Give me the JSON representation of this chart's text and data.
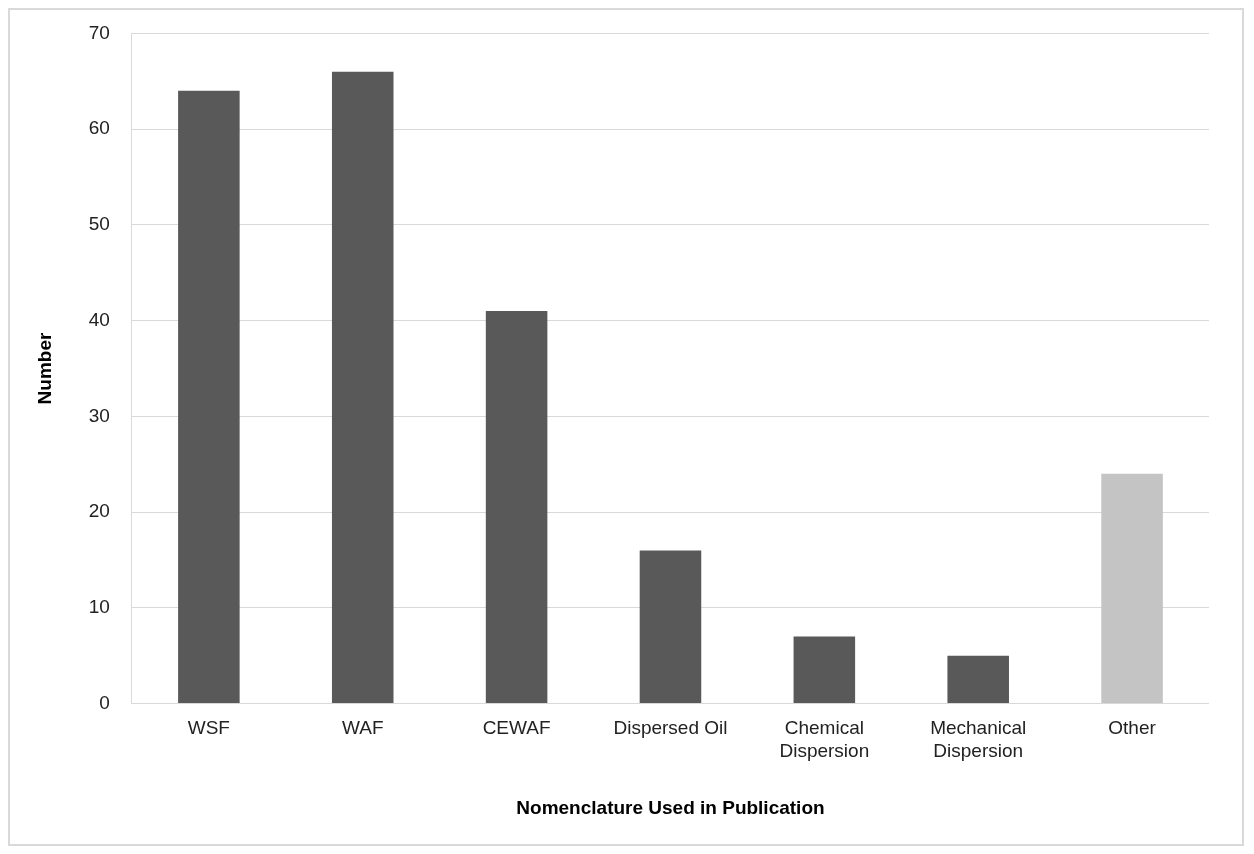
{
  "chart_data": {
    "type": "bar",
    "xlabel": "Nomenclature Used in Publication",
    "ylabel": "Number",
    "categories": [
      "WSF",
      "WAF",
      "CEWAF",
      "Dispersed Oil",
      "Chemical Dispersion",
      "Mechanical Dispersion",
      "Other"
    ],
    "values": [
      64,
      66,
      41,
      16,
      7,
      5,
      24
    ],
    "colors": [
      "#595959",
      "#595959",
      "#595959",
      "#595959",
      "#595959",
      "#595959",
      "#c4c4c4"
    ],
    "ylim": [
      0,
      70
    ],
    "yticks": [
      0,
      10,
      20,
      30,
      40,
      50,
      60,
      70
    ],
    "grid": "y",
    "legend": false
  }
}
